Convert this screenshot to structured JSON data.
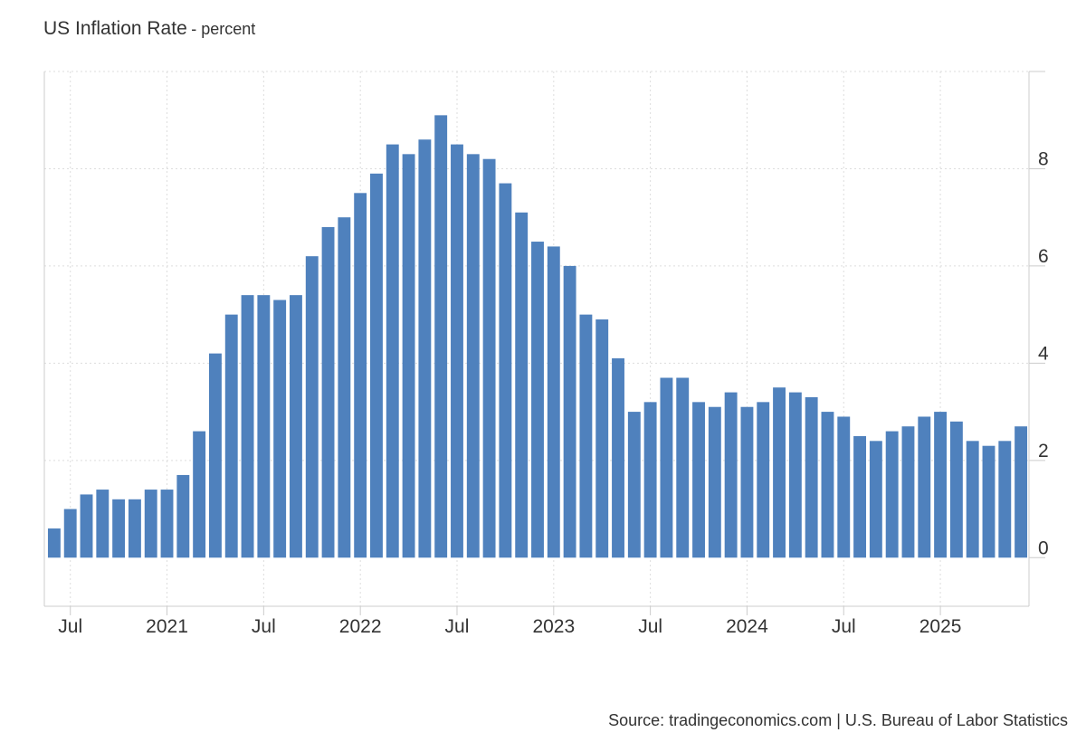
{
  "header": {
    "title": "US Inflation Rate",
    "subtitle": "- percent"
  },
  "footer": {
    "source": "Source: tradingeconomics.com | U.S. Bureau of Labor Statistics"
  },
  "colors": {
    "bar": "#4f81bd",
    "grid": "#dddddd",
    "axis": "#cccccc",
    "text": "#333333"
  },
  "chart_data": {
    "type": "bar",
    "title": "US Inflation Rate",
    "subtitle": "- percent",
    "xlabel": "",
    "ylabel": "",
    "ylim": [
      -1,
      10
    ],
    "y_ticks": [
      0,
      2,
      4,
      6,
      8
    ],
    "y_axis_side": "right",
    "grid": true,
    "categories": [
      "2020-06",
      "2020-07",
      "2020-08",
      "2020-09",
      "2020-10",
      "2020-11",
      "2020-12",
      "2021-01",
      "2021-02",
      "2021-03",
      "2021-04",
      "2021-05",
      "2021-06",
      "2021-07",
      "2021-08",
      "2021-09",
      "2021-10",
      "2021-11",
      "2021-12",
      "2022-01",
      "2022-02",
      "2022-03",
      "2022-04",
      "2022-05",
      "2022-06",
      "2022-07",
      "2022-08",
      "2022-09",
      "2022-10",
      "2022-11",
      "2022-12",
      "2023-01",
      "2023-02",
      "2023-03",
      "2023-04",
      "2023-05",
      "2023-06",
      "2023-07",
      "2023-08",
      "2023-09",
      "2023-10",
      "2023-11",
      "2023-12",
      "2024-01",
      "2024-02",
      "2024-03",
      "2024-04",
      "2024-05",
      "2024-06",
      "2024-07",
      "2024-08",
      "2024-09",
      "2024-10",
      "2024-11",
      "2024-12",
      "2025-01",
      "2025-02",
      "2025-03",
      "2025-04",
      "2025-05",
      "2025-06"
    ],
    "values": [
      0.6,
      1.0,
      1.3,
      1.4,
      1.2,
      1.2,
      1.4,
      1.4,
      1.7,
      2.6,
      4.2,
      5.0,
      5.4,
      5.4,
      5.3,
      5.4,
      6.2,
      6.8,
      7.0,
      7.5,
      7.9,
      8.5,
      8.3,
      8.6,
      9.1,
      8.5,
      8.3,
      8.2,
      7.7,
      7.1,
      6.5,
      6.4,
      6.0,
      5.0,
      4.9,
      4.1,
      3.0,
      3.2,
      3.7,
      3.7,
      3.2,
      3.1,
      3.4,
      3.1,
      3.2,
      3.5,
      3.4,
      3.3,
      3.0,
      2.9,
      2.5,
      2.4,
      2.6,
      2.7,
      2.9,
      3.0,
      2.8,
      2.4,
      2.3,
      2.4,
      2.7
    ],
    "x_ticks": [
      {
        "index": 1,
        "label": "Jul"
      },
      {
        "index": 7,
        "label": "2021"
      },
      {
        "index": 13,
        "label": "Jul"
      },
      {
        "index": 19,
        "label": "2022"
      },
      {
        "index": 25,
        "label": "Jul"
      },
      {
        "index": 31,
        "label": "2023"
      },
      {
        "index": 37,
        "label": "Jul"
      },
      {
        "index": 43,
        "label": "2024"
      },
      {
        "index": 49,
        "label": "Jul"
      },
      {
        "index": 55,
        "label": "2025"
      }
    ]
  }
}
